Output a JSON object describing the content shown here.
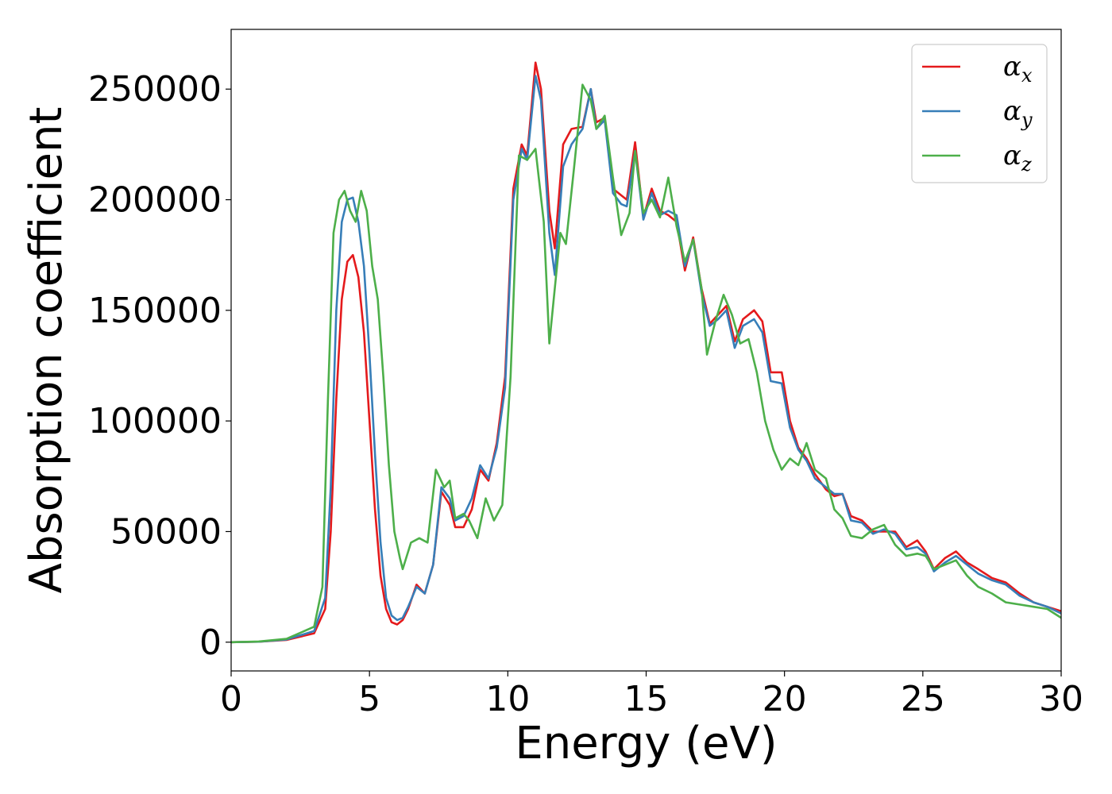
{
  "chart_data": {
    "type": "line",
    "xlabel": "Energy (eV)",
    "ylabel": "Absorption coefficient",
    "xlim": [
      0,
      30
    ],
    "ylim": [
      -13000,
      277000
    ],
    "xticks": [
      0,
      5,
      10,
      15,
      20,
      25,
      30
    ],
    "xtick_labels": [
      "0",
      "5",
      "10",
      "15",
      "20",
      "25",
      "30"
    ],
    "yticks": [
      0,
      50000,
      100000,
      150000,
      200000,
      250000
    ],
    "ytick_labels": [
      "0",
      "50000",
      "100000",
      "150000",
      "200000",
      "250000"
    ],
    "grid": false,
    "legend_position": "top-right",
    "series": [
      {
        "name": "α",
        "subscript": "x",
        "color": "#e41a1c",
        "points": [
          [
            0,
            0
          ],
          [
            1,
            200
          ],
          [
            2,
            1000
          ],
          [
            3,
            4000
          ],
          [
            3.4,
            15000
          ],
          [
            3.6,
            50000
          ],
          [
            3.8,
            110000
          ],
          [
            4.0,
            155000
          ],
          [
            4.2,
            172000
          ],
          [
            4.4,
            175000
          ],
          [
            4.6,
            165000
          ],
          [
            4.8,
            140000
          ],
          [
            5.0,
            100000
          ],
          [
            5.2,
            60000
          ],
          [
            5.4,
            30000
          ],
          [
            5.6,
            15000
          ],
          [
            5.8,
            9000
          ],
          [
            6.0,
            8000
          ],
          [
            6.2,
            10000
          ],
          [
            6.4,
            15000
          ],
          [
            6.7,
            26000
          ],
          [
            7.0,
            22000
          ],
          [
            7.3,
            35000
          ],
          [
            7.6,
            68000
          ],
          [
            7.9,
            62000
          ],
          [
            8.1,
            52000
          ],
          [
            8.4,
            52000
          ],
          [
            8.7,
            60000
          ],
          [
            9.0,
            78000
          ],
          [
            9.3,
            73000
          ],
          [
            9.6,
            90000
          ],
          [
            9.9,
            120000
          ],
          [
            10.2,
            205000
          ],
          [
            10.5,
            225000
          ],
          [
            10.7,
            220000
          ],
          [
            11.0,
            262000
          ],
          [
            11.2,
            250000
          ],
          [
            11.5,
            195000
          ],
          [
            11.7,
            178000
          ],
          [
            12.0,
            225000
          ],
          [
            12.3,
            232000
          ],
          [
            12.7,
            233000
          ],
          [
            13.0,
            250000
          ],
          [
            13.2,
            235000
          ],
          [
            13.5,
            237000
          ],
          [
            13.8,
            205000
          ],
          [
            14.1,
            202000
          ],
          [
            14.3,
            200000
          ],
          [
            14.6,
            226000
          ],
          [
            14.9,
            192000
          ],
          [
            15.2,
            205000
          ],
          [
            15.5,
            195000
          ],
          [
            15.8,
            193000
          ],
          [
            16.1,
            190000
          ],
          [
            16.4,
            168000
          ],
          [
            16.7,
            183000
          ],
          [
            17.0,
            160000
          ],
          [
            17.3,
            144000
          ],
          [
            17.6,
            148000
          ],
          [
            17.9,
            152000
          ],
          [
            18.2,
            136000
          ],
          [
            18.5,
            146000
          ],
          [
            18.9,
            150000
          ],
          [
            19.2,
            145000
          ],
          [
            19.5,
            122000
          ],
          [
            19.9,
            122000
          ],
          [
            20.2,
            100000
          ],
          [
            20.5,
            88000
          ],
          [
            20.8,
            83000
          ],
          [
            21.1,
            76000
          ],
          [
            21.5,
            69000
          ],
          [
            21.8,
            66000
          ],
          [
            22.1,
            67000
          ],
          [
            22.4,
            57000
          ],
          [
            22.8,
            55000
          ],
          [
            23.2,
            50000
          ],
          [
            23.6,
            50000
          ],
          [
            24.0,
            50000
          ],
          [
            24.4,
            43000
          ],
          [
            24.8,
            46000
          ],
          [
            25.1,
            41000
          ],
          [
            25.4,
            33000
          ],
          [
            25.8,
            38000
          ],
          [
            26.2,
            41000
          ],
          [
            26.6,
            36000
          ],
          [
            27.0,
            33000
          ],
          [
            27.5,
            29000
          ],
          [
            28.0,
            27000
          ],
          [
            28.5,
            22000
          ],
          [
            29.0,
            18000
          ],
          [
            29.5,
            16000
          ],
          [
            30.0,
            14000
          ]
        ]
      },
      {
        "name": "α",
        "subscript": "y",
        "color": "#377eb8",
        "points": [
          [
            0,
            0
          ],
          [
            1,
            200
          ],
          [
            2,
            1200
          ],
          [
            3,
            5000
          ],
          [
            3.4,
            20000
          ],
          [
            3.6,
            70000
          ],
          [
            3.8,
            150000
          ],
          [
            4.0,
            190000
          ],
          [
            4.2,
            200000
          ],
          [
            4.4,
            201000
          ],
          [
            4.6,
            190000
          ],
          [
            4.8,
            170000
          ],
          [
            5.0,
            130000
          ],
          [
            5.2,
            85000
          ],
          [
            5.4,
            45000
          ],
          [
            5.6,
            20000
          ],
          [
            5.8,
            12000
          ],
          [
            6.0,
            10000
          ],
          [
            6.2,
            11000
          ],
          [
            6.4,
            16000
          ],
          [
            6.7,
            25000
          ],
          [
            7.0,
            22000
          ],
          [
            7.3,
            35000
          ],
          [
            7.6,
            70000
          ],
          [
            7.9,
            65000
          ],
          [
            8.1,
            55000
          ],
          [
            8.4,
            57000
          ],
          [
            8.7,
            65000
          ],
          [
            9.0,
            80000
          ],
          [
            9.3,
            74000
          ],
          [
            9.6,
            88000
          ],
          [
            9.9,
            115000
          ],
          [
            10.2,
            200000
          ],
          [
            10.5,
            223000
          ],
          [
            10.7,
            218000
          ],
          [
            11.0,
            256000
          ],
          [
            11.2,
            245000
          ],
          [
            11.5,
            185000
          ],
          [
            11.7,
            166000
          ],
          [
            12.0,
            215000
          ],
          [
            12.3,
            225000
          ],
          [
            12.7,
            232000
          ],
          [
            13.0,
            250000
          ],
          [
            13.2,
            232000
          ],
          [
            13.5,
            236000
          ],
          [
            13.8,
            203000
          ],
          [
            14.1,
            198000
          ],
          [
            14.3,
            197000
          ],
          [
            14.6,
            222000
          ],
          [
            14.9,
            191000
          ],
          [
            15.2,
            203000
          ],
          [
            15.5,
            193000
          ],
          [
            15.8,
            195000
          ],
          [
            16.1,
            193000
          ],
          [
            16.4,
            170000
          ],
          [
            16.7,
            182000
          ],
          [
            17.0,
            158000
          ],
          [
            17.3,
            143000
          ],
          [
            17.6,
            146000
          ],
          [
            17.9,
            150000
          ],
          [
            18.2,
            133000
          ],
          [
            18.5,
            143000
          ],
          [
            18.9,
            146000
          ],
          [
            19.2,
            140000
          ],
          [
            19.5,
            118000
          ],
          [
            19.9,
            117000
          ],
          [
            20.2,
            97000
          ],
          [
            20.5,
            87000
          ],
          [
            20.8,
            82000
          ],
          [
            21.1,
            74000
          ],
          [
            21.5,
            70000
          ],
          [
            21.8,
            67000
          ],
          [
            22.1,
            67000
          ],
          [
            22.4,
            55000
          ],
          [
            22.8,
            54000
          ],
          [
            23.2,
            49000
          ],
          [
            23.6,
            51000
          ],
          [
            24.0,
            49000
          ],
          [
            24.4,
            42000
          ],
          [
            24.8,
            43000
          ],
          [
            25.1,
            40000
          ],
          [
            25.4,
            32000
          ],
          [
            25.8,
            36000
          ],
          [
            26.2,
            39000
          ],
          [
            26.6,
            35000
          ],
          [
            27.0,
            31000
          ],
          [
            27.5,
            28000
          ],
          [
            28.0,
            26000
          ],
          [
            28.5,
            21000
          ],
          [
            29.0,
            18000
          ],
          [
            29.5,
            16000
          ],
          [
            30.0,
            13000
          ]
        ]
      },
      {
        "name": "α",
        "subscript": "z",
        "color": "#4daf4a",
        "points": [
          [
            0,
            0
          ],
          [
            1,
            300
          ],
          [
            2,
            1500
          ],
          [
            3,
            7000
          ],
          [
            3.3,
            25000
          ],
          [
            3.5,
            110000
          ],
          [
            3.7,
            185000
          ],
          [
            3.9,
            200000
          ],
          [
            4.1,
            204000
          ],
          [
            4.3,
            195000
          ],
          [
            4.5,
            190000
          ],
          [
            4.7,
            204000
          ],
          [
            4.9,
            195000
          ],
          [
            5.1,
            170000
          ],
          [
            5.3,
            155000
          ],
          [
            5.5,
            120000
          ],
          [
            5.7,
            80000
          ],
          [
            5.9,
            50000
          ],
          [
            6.1,
            38000
          ],
          [
            6.2,
            33000
          ],
          [
            6.5,
            45000
          ],
          [
            6.8,
            47000
          ],
          [
            7.1,
            45000
          ],
          [
            7.4,
            78000
          ],
          [
            7.7,
            70000
          ],
          [
            7.9,
            73000
          ],
          [
            8.1,
            56000
          ],
          [
            8.4,
            58000
          ],
          [
            8.6,
            55000
          ],
          [
            8.9,
            47000
          ],
          [
            9.2,
            65000
          ],
          [
            9.5,
            55000
          ],
          [
            9.8,
            62000
          ],
          [
            10.1,
            120000
          ],
          [
            10.4,
            220000
          ],
          [
            10.7,
            218000
          ],
          [
            11.0,
            223000
          ],
          [
            11.3,
            190000
          ],
          [
            11.5,
            135000
          ],
          [
            11.7,
            160000
          ],
          [
            11.9,
            185000
          ],
          [
            12.1,
            180000
          ],
          [
            12.4,
            215000
          ],
          [
            12.7,
            252000
          ],
          [
            13.0,
            245000
          ],
          [
            13.2,
            232000
          ],
          [
            13.5,
            238000
          ],
          [
            13.8,
            210000
          ],
          [
            14.1,
            184000
          ],
          [
            14.4,
            194000
          ],
          [
            14.6,
            222000
          ],
          [
            14.9,
            194000
          ],
          [
            15.2,
            200000
          ],
          [
            15.5,
            192000
          ],
          [
            15.8,
            210000
          ],
          [
            16.1,
            188000
          ],
          [
            16.4,
            172000
          ],
          [
            16.7,
            182000
          ],
          [
            17.0,
            160000
          ],
          [
            17.2,
            130000
          ],
          [
            17.5,
            145000
          ],
          [
            17.8,
            157000
          ],
          [
            18.1,
            148000
          ],
          [
            18.4,
            135000
          ],
          [
            18.7,
            137000
          ],
          [
            19.0,
            122000
          ],
          [
            19.3,
            100000
          ],
          [
            19.6,
            87000
          ],
          [
            19.9,
            78000
          ],
          [
            20.2,
            83000
          ],
          [
            20.5,
            80000
          ],
          [
            20.8,
            90000
          ],
          [
            21.1,
            78000
          ],
          [
            21.5,
            74000
          ],
          [
            21.8,
            60000
          ],
          [
            22.1,
            56000
          ],
          [
            22.4,
            48000
          ],
          [
            22.8,
            47000
          ],
          [
            23.2,
            51000
          ],
          [
            23.6,
            53000
          ],
          [
            24.0,
            44000
          ],
          [
            24.4,
            39000
          ],
          [
            24.8,
            40000
          ],
          [
            25.1,
            39000
          ],
          [
            25.4,
            33000
          ],
          [
            25.8,
            35000
          ],
          [
            26.2,
            37000
          ],
          [
            26.6,
            30000
          ],
          [
            27.0,
            25000
          ],
          [
            27.5,
            22000
          ],
          [
            28.0,
            18000
          ],
          [
            28.5,
            17000
          ],
          [
            29.0,
            16000
          ],
          [
            29.5,
            15000
          ],
          [
            30.0,
            11000
          ]
        ]
      }
    ]
  }
}
